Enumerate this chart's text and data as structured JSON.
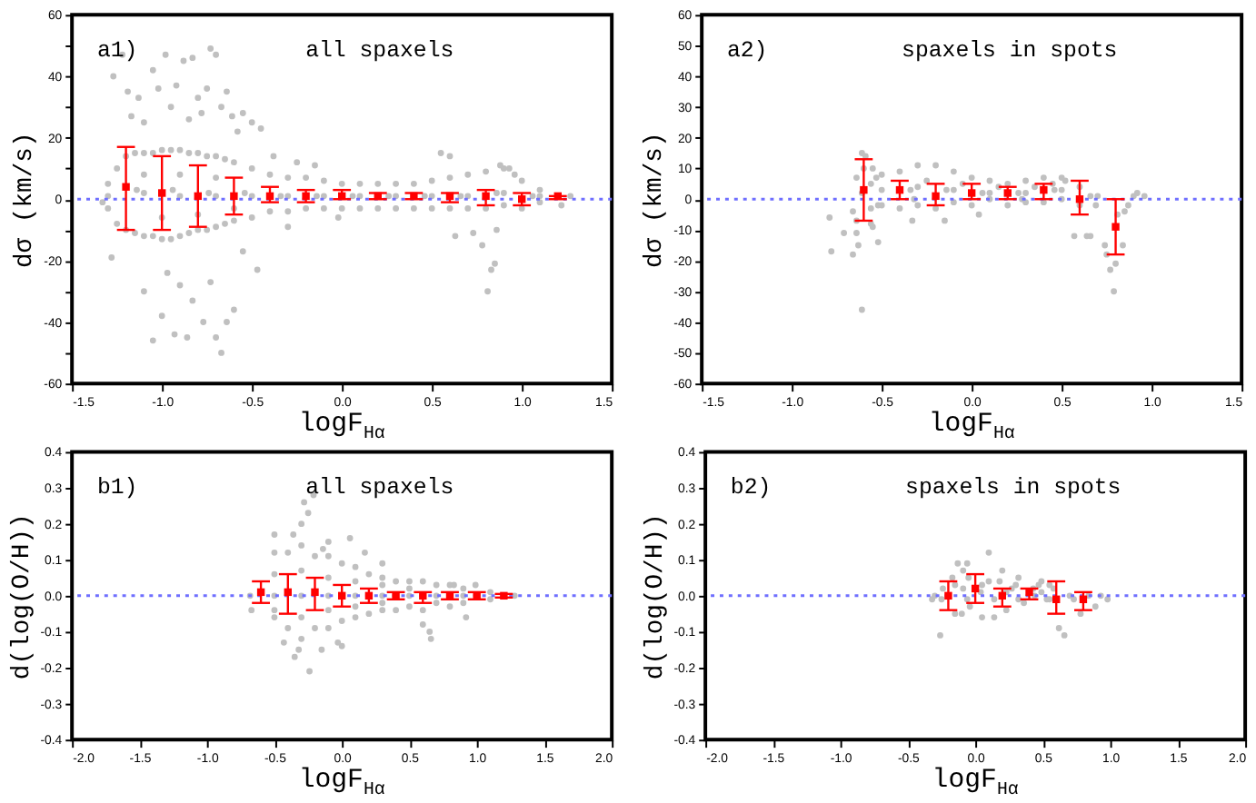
{
  "chart_data": [
    {
      "type": "scatter",
      "annotations": [
        "a1)",
        "all spaxels"
      ],
      "xlabel": "logF$_{Hα}$",
      "ylabel": "dσ (km/s)",
      "xlim": [
        -1.5,
        1.5
      ],
      "xticks": [
        -1.5,
        {
          "value": -1,
          "label": "-1.0"
        },
        -0.5,
        {
          "value": 0,
          "label": "0.0"
        },
        0.5,
        {
          "value": 1,
          "label": "1.0"
        },
        1.5
      ],
      "ylim": [
        -60,
        60
      ],
      "yticks": [
        -60,
        {
          "value": -50,
          "label": null
        },
        -40,
        {
          "value": -30,
          "label": null
        },
        -20,
        {
          "value": -10,
          "label": null
        },
        0,
        {
          "value": 10,
          "label": null
        },
        20,
        {
          "value": 30,
          "label": null
        },
        40,
        {
          "value": 50,
          "label": null
        },
        60
      ],
      "ref_lines": [
        {
          "axis": "y",
          "value": 0,
          "color": "#6f6fff",
          "line_style": "dotted"
        }
      ],
      "series": [
        {
          "color": "#c0c0c0",
          "marker": "circle",
          "x": [
            -1.3,
            -1.3,
            -1.3,
            -1.2,
            -1.14,
            -1.2,
            -1.1,
            -1.1,
            -1.1,
            -1.0,
            -0.94,
            -1.0,
            -0.9,
            -0.9,
            -0.9,
            -0.8,
            -0.74,
            -0.8,
            -0.7,
            -0.7,
            -0.7,
            -0.6,
            -0.54,
            -0.6,
            -0.5,
            -0.5,
            -0.5,
            -0.4,
            -0.34,
            -0.4,
            -0.3,
            -0.3,
            -0.3,
            -0.2,
            -0.14,
            -0.2,
            -0.1,
            -0.1,
            -0.1,
            0,
            0.06,
            0,
            0.1,
            0.1,
            0.1,
            0.2,
            0.26,
            0.2,
            0.3,
            0.3,
            0.3,
            0.4,
            0.46,
            0.4,
            0.5,
            0.5,
            0.5,
            0.6,
            0.66,
            0.6,
            0.7,
            0.7,
            0.7,
            0.8,
            0.86,
            0.8,
            0.9,
            0.9,
            0.9,
            1.0,
            1.06,
            1.0,
            1.1,
            1.1,
            1.1,
            1.27,
            1.22,
            -1.25,
            -1.25,
            -1.15,
            -1.15,
            -1.05,
            -1.05,
            -0.95,
            -0.95,
            -0.85,
            -0.85,
            -0.75,
            -0.75,
            -0.65,
            -0.65,
            -1.1,
            -1.0,
            -0.9,
            -0.8,
            -0.7,
            -0.6,
            -1.27,
            -1.22,
            -1.19,
            -1.17,
            -1.13,
            -1.1,
            -1.05,
            -1.02,
            -0.98,
            -0.95,
            -0.92,
            -0.88,
            -0.85,
            -0.83,
            -0.8,
            -0.78,
            -0.75,
            -0.73,
            -0.7,
            -0.67,
            -0.64,
            -0.61,
            -0.58,
            -0.55,
            -0.5,
            -0.45,
            -0.38,
            -0.25,
            -1.28,
            -1.1,
            -1.05,
            -1.0,
            -0.97,
            -0.93,
            -0.9,
            -0.86,
            -0.83,
            -0.77,
            -0.73,
            -0.7,
            -0.67,
            -0.64,
            -0.6,
            -0.55,
            -0.47,
            -0.3,
            0.55,
            0.6,
            0.63,
            0.73,
            0.78,
            0.81,
            0.83,
            0.85,
            0.86,
            0.88,
            0.93,
            0.96,
            -0.02,
            -0.15,
            -1.33
          ],
          "values": [
            5,
            1,
            -3,
            14,
            3,
            -10,
            15,
            2,
            -12,
            16,
            3,
            -13,
            16,
            1,
            -12,
            15,
            2,
            -10,
            14,
            1,
            -9,
            12,
            2,
            -7,
            10,
            1,
            -6,
            8,
            1,
            -4,
            7,
            1,
            -4,
            7,
            1,
            -3,
            6,
            1,
            -3,
            5,
            1,
            -3,
            5,
            1,
            -3,
            5,
            1,
            -3,
            5,
            1,
            -3,
            5,
            1,
            -3,
            6,
            1,
            -3,
            7,
            1,
            -3,
            8,
            1,
            -3,
            9,
            2,
            -3,
            10,
            2,
            -2,
            6,
            1,
            -3,
            3,
            1,
            -1,
            1,
            -2,
            10,
            -8,
            15,
            -11,
            15,
            -12,
            16,
            -13,
            15,
            -11,
            14,
            -10,
            13,
            -8,
            8,
            -6,
            8,
            -5,
            7,
            -3,
            40,
            47,
            35,
            27,
            33,
            25,
            42,
            36,
            47,
            30,
            37,
            45,
            26,
            46,
            33,
            28,
            36,
            49,
            47,
            30,
            35,
            27,
            22,
            28,
            25,
            23,
            14,
            12,
            -19,
            -30,
            -46,
            -38,
            -24,
            -44,
            -28,
            -45,
            -33,
            -40,
            -27,
            -45,
            -50,
            -40,
            -36,
            -17,
            -23,
            -9,
            15,
            14,
            -12,
            -11,
            -15,
            -30,
            -23,
            -21,
            -10,
            11,
            10,
            8,
            -6,
            11,
            -1
          ]
        },
        {
          "color": "#ff0000",
          "marker": "square",
          "x": [
            -1.2,
            -1.0,
            -0.8,
            -0.6,
            -0.4,
            -0.2,
            0,
            0.2,
            0.4,
            0.6,
            0.8,
            1.0,
            1.2
          ],
          "values": [
            4,
            2,
            1,
            1,
            1,
            1,
            1,
            1,
            1,
            1,
            1,
            0,
            1
          ],
          "errors": [
            [
              -10,
              17
            ],
            [
              -10,
              14
            ],
            [
              -9,
              11
            ],
            [
              -5,
              7
            ],
            [
              -1,
              4
            ],
            [
              -1,
              3
            ],
            [
              0,
              3
            ],
            [
              0,
              2
            ],
            [
              0,
              2
            ],
            [
              -1,
              2
            ],
            [
              -2,
              3
            ],
            [
              -2,
              2
            ],
            [
              0,
              1
            ]
          ]
        }
      ]
    },
    {
      "type": "scatter",
      "annotations": [
        "a2)",
        "spaxels in spots"
      ],
      "xlabel": "logF$_{Hα}$",
      "ylabel": "dσ (km/s)",
      "xlim": [
        -1.5,
        1.5
      ],
      "xticks": [
        -1.5,
        {
          "value": -1,
          "label": "-1.0"
        },
        -0.5,
        {
          "value": 0,
          "label": "0.0"
        },
        0.5,
        {
          "value": 1,
          "label": "1.0"
        },
        1.5
      ],
      "ylim": [
        -60,
        60
      ],
      "yticks": [
        -60,
        -50,
        -40,
        -30,
        -20,
        -10,
        0,
        10,
        20,
        30,
        40,
        50,
        60
      ],
      "ref_lines": [
        {
          "axis": "y",
          "value": 0,
          "color": "#6f6fff",
          "line_style": "dotted"
        }
      ],
      "series": [
        {
          "color": "#c0c0c0",
          "marker": "circle",
          "x": [
            -0.79,
            -0.78,
            -0.71,
            -0.66,
            -0.66,
            -0.64,
            -0.64,
            -0.63,
            -0.61,
            -0.61,
            -0.64,
            -0.61,
            -0.59,
            -0.6,
            -0.56,
            -0.56,
            -0.55,
            -0.56,
            -0.52,
            -0.52,
            -0.53,
            -0.55,
            -0.5,
            -0.5,
            -0.5,
            -0.4,
            -0.4,
            -0.34,
            -0.3,
            -0.3,
            -0.3,
            -0.2,
            -0.2,
            -0.14,
            -0.1,
            -0.1,
            -0.1,
            0,
            0,
            0.06,
            0.1,
            0.1,
            0.1,
            0.2,
            0.2,
            0.26,
            0.3,
            0.3,
            0.3,
            0.4,
            0.4,
            0.46,
            0.5,
            0.5,
            0.5,
            0.6,
            0.6,
            0.66,
            -0.33,
            -0.15,
            0.04,
            0.57,
            0.64,
            0.66,
            0.74,
            0.75,
            0.77,
            0.8,
            0.79,
            0.81,
            0.84,
            0.85,
            0.87,
            0.9,
            0.92,
            0.96,
            0.7,
            0.69,
            -0.25,
            -0.05,
            0.15,
            0.35,
            0.45,
            0.52,
            0.28,
            -0.32
          ],
          "values": [
            -6,
            -17,
            -11,
            -4,
            -18,
            -7,
            -11,
            -15,
            -36,
            2,
            7,
            15,
            14,
            10,
            5,
            -3,
            10,
            -8,
            -14,
            -2,
            7,
            -9,
            8,
            -2,
            3,
            9,
            -3,
            3,
            11,
            -2,
            4,
            11,
            -3,
            3,
            9,
            -1,
            3,
            7,
            -2,
            2,
            6,
            0,
            2,
            5,
            -2,
            2,
            6,
            -1,
            2,
            7,
            -1,
            3,
            7,
            0,
            3,
            4,
            -2,
            1,
            -7,
            -7,
            -5,
            -12,
            -12,
            -12,
            -15,
            -18,
            -23,
            -21,
            -30,
            -5,
            -15,
            -4,
            -2,
            1,
            2,
            1,
            1,
            -2,
            6,
            5,
            4,
            4,
            5,
            6,
            0,
            0
          ]
        },
        {
          "color": "#ff0000",
          "marker": "square",
          "x": [
            -0.6,
            -0.4,
            -0.2,
            0,
            0.2,
            0.4,
            0.6,
            0.8
          ],
          "values": [
            3,
            3,
            1,
            2,
            2,
            3,
            0,
            -9
          ],
          "errors": [
            [
              -7,
              13
            ],
            [
              0,
              6
            ],
            [
              -2,
              5
            ],
            [
              0,
              5
            ],
            [
              0,
              4
            ],
            [
              0,
              5
            ],
            [
              -5,
              6
            ],
            [
              -18,
              0
            ]
          ]
        }
      ]
    },
    {
      "type": "scatter",
      "annotations": [
        "b1)",
        "all spaxels"
      ],
      "xlabel": "logF$_{Hα}$",
      "ylabel": "d(log(O/H))",
      "xlim": [
        -2,
        2
      ],
      "xticks": [
        {
          "value": -2,
          "label": "-2.0"
        },
        -1.5,
        {
          "value": -1,
          "label": "-1.0"
        },
        -0.5,
        {
          "value": 0,
          "label": "0.0"
        },
        0.5,
        {
          "value": 1,
          "label": "1.0"
        },
        1.5,
        {
          "value": 2,
          "label": "2.0"
        }
      ],
      "ylim": [
        -0.4,
        0.4
      ],
      "yticks": [
        -0.4,
        -0.3,
        -0.2,
        -0.1,
        {
          "value": 0,
          "label": "0.0"
        },
        0.1,
        0.2,
        0.3,
        0.4
      ],
      "ref_lines": [
        {
          "axis": "y",
          "value": 0,
          "color": "#6f6fff",
          "line_style": "dotted"
        }
      ],
      "series": [
        {
          "color": "#c0c0c0",
          "marker": "circle",
          "x": [
            -0.5,
            -0.5,
            -0.5,
            -0.5,
            -0.5,
            -0.3,
            -0.3,
            -0.3,
            -0.3,
            -0.3,
            -0.1,
            -0.1,
            -0.1,
            -0.1,
            -0.1,
            0.1,
            0.1,
            0.1,
            0.1,
            0.1,
            0.3,
            0.3,
            0.3,
            0.3,
            0.3,
            0.5,
            0.5,
            0.5,
            0.5,
            0.7,
            0.7,
            0.7,
            0.9,
            0.9,
            0.9,
            1.1,
            1.1,
            -0.4,
            -0.4,
            -0.2,
            -0.2,
            0,
            0,
            0.2,
            0.2,
            0.4,
            0.4,
            0.6,
            0.6,
            0.8,
            0.8,
            -0.68,
            -0.67,
            1.28,
            -0.5,
            -0.21,
            -0.28,
            -0.25,
            -0.3,
            -0.24,
            -0.32,
            -0.43,
            -0.03,
            0,
            0.06,
            0.17,
            -0.14,
            0.3,
            0.65,
            0.66,
            0.6,
            0.92,
            0.83,
            0.99,
            -0.35,
            -0.15,
            -0.36,
            -0.1
          ],
          "values": [
            0.12,
            0.06,
            0,
            -0.04,
            -0.06,
            0.14,
            0.07,
            0,
            -0.06,
            -0.12,
            0.11,
            0.05,
            0,
            -0.04,
            -0.09,
            0.08,
            0.04,
            0,
            -0.03,
            -0.06,
            0.05,
            0.03,
            0,
            -0.02,
            -0.04,
            0.04,
            0.02,
            0,
            -0.03,
            0.03,
            0,
            -0.02,
            0.02,
            0,
            -0.02,
            0.01,
            -0.01,
            0.12,
            -0.09,
            0.11,
            -0.09,
            0.09,
            -0.07,
            0.06,
            -0.05,
            0.04,
            -0.04,
            0.04,
            -0.04,
            0.03,
            -0.03,
            0,
            -0.04,
            0,
            0.17,
            0.28,
            0.26,
            0.23,
            0.2,
            -0.21,
            -0.15,
            -0.13,
            -0.13,
            -0.14,
            0.16,
            0.12,
            0.13,
            0.09,
            -0.1,
            -0.12,
            -0.08,
            -0.06,
            0.03,
            0.03,
            -0.17,
            -0.15,
            0.17,
            0.15
          ]
        },
        {
          "color": "#ff0000",
          "marker": "square",
          "x": [
            -0.6,
            -0.4,
            -0.2,
            0,
            0.2,
            0.4,
            0.6,
            0.8,
            1.0,
            1.2
          ],
          "values": [
            0.01,
            0.01,
            0.01,
            0,
            0,
            0,
            0,
            0,
            0,
            0
          ],
          "errors": [
            [
              -0.02,
              0.04
            ],
            [
              -0.05,
              0.06
            ],
            [
              -0.04,
              0.05
            ],
            [
              -0.03,
              0.03
            ],
            [
              -0.02,
              0.02
            ],
            [
              -0.01,
              0.01
            ],
            [
              -0.02,
              0.01
            ],
            [
              -0.01,
              0.01
            ],
            [
              -0.01,
              0.01
            ],
            [
              -0.005,
              0.005
            ]
          ]
        }
      ]
    },
    {
      "type": "scatter",
      "annotations": [
        "b2)",
        "spaxels in spots"
      ],
      "xlabel": "logF$_{Hα}$",
      "ylabel": "d(log(O/H))",
      "xlim": [
        -2,
        2
      ],
      "xticks": [
        {
          "value": -2,
          "label": "-2.0"
        },
        -1.5,
        {
          "value": -1,
          "label": "-1.0"
        },
        -0.5,
        {
          "value": 0,
          "label": "0.0"
        },
        0.5,
        {
          "value": 1,
          "label": "1.0"
        },
        1.5,
        {
          "value": 2,
          "label": "2.0"
        }
      ],
      "ylim": [
        -0.4,
        0.4
      ],
      "yticks": [
        -0.4,
        -0.3,
        -0.2,
        -0.1,
        {
          "value": 0,
          "label": "0.0"
        },
        0.1,
        0.2,
        0.3,
        0.4
      ],
      "ref_lines": [
        {
          "axis": "y",
          "value": 0,
          "color": "#6f6fff",
          "line_style": "dotted"
        }
      ],
      "series": [
        {
          "color": "#c0c0c0",
          "marker": "circle",
          "x": [
            0.1,
            -0.26,
            -0.32,
            -0.3,
            -0.13,
            -0.06,
            -0.09,
            -0.17,
            0.2,
            0.18,
            0.32,
            0.49,
            0.58,
            0.62,
            0.66,
            0.78,
            0.89,
            0.98,
            0.93,
            -0.04,
            0.05,
            0.14,
            0.23,
            -0.1,
            -0.15,
            0.44,
            0.32,
            0.23,
            0.04,
            -0.09,
            0.49,
            0.53,
            0.73,
            0.84,
            0.55,
            0.36,
            0.14,
            -0.25,
            -0.24,
            0.1,
            0.43,
            0.27,
            -0.05,
            0.05,
            0.3,
            0.47,
            0.55,
            -0.06,
            -0.15,
            0.7
          ],
          "values": [
            0.12,
            -0.11,
            -0.01,
            0,
            0.09,
            0.09,
            0.07,
            0.05,
            0.07,
            0.04,
            0.05,
            0.04,
            0.02,
            -0.09,
            -0.11,
            -0.05,
            -0.03,
            -0.01,
            0,
            -0.03,
            -0.06,
            -0.06,
            -0.04,
            -0.05,
            -0.05,
            0,
            -0.01,
            0.01,
            0.01,
            0.02,
            0.01,
            -0.01,
            -0.01,
            0,
            -0.01,
            -0.02,
            -0.01,
            -0.01,
            0.02,
            0.04,
            0.02,
            0.02,
            0.05,
            0.03,
            0.03,
            0.03,
            0.03,
            -0.01,
            0.03,
            0
          ]
        },
        {
          "color": "#ff0000",
          "marker": "square",
          "x": [
            -0.2,
            0,
            0.2,
            0.4,
            0.6,
            0.8
          ],
          "values": [
            0,
            0.02,
            0,
            0.01,
            -0.01,
            -0.01
          ],
          "errors": [
            [
              -0.04,
              0.04
            ],
            [
              -0.02,
              0.06
            ],
            [
              -0.03,
              0.02
            ],
            [
              -0.01,
              0.02
            ],
            [
              -0.05,
              0.04
            ],
            [
              -0.04,
              0.01
            ]
          ]
        }
      ]
    }
  ]
}
